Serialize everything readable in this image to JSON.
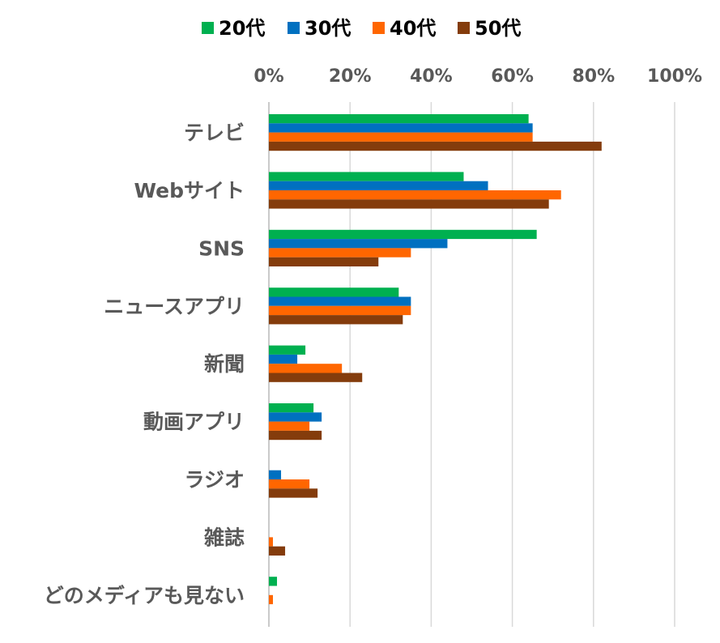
{
  "chart_data": {
    "type": "bar",
    "orientation": "horizontal",
    "categories": [
      "テレビ",
      "Webサイト",
      "SNS",
      "ニュースアプリ",
      "新聞",
      "動画アプリ",
      "ラジオ",
      "雑誌",
      "どのメディアも見ない"
    ],
    "series": [
      {
        "name": "20代",
        "color": "#00B050",
        "values": [
          64,
          48,
          66,
          32,
          9,
          11,
          0,
          0,
          2
        ]
      },
      {
        "name": "30代",
        "color": "#0070C0",
        "values": [
          65,
          54,
          44,
          35,
          7,
          13,
          3,
          0,
          0
        ]
      },
      {
        "name": "40代",
        "color": "#FF6600",
        "values": [
          65,
          72,
          35,
          35,
          18,
          10,
          10,
          1,
          1
        ]
      },
      {
        "name": "50代",
        "color": "#843C0C",
        "values": [
          82,
          69,
          27,
          33,
          23,
          13,
          12,
          4,
          0
        ]
      }
    ],
    "xlim": [
      0,
      100
    ],
    "xticks": [
      0,
      20,
      40,
      60,
      80,
      100
    ],
    "tick_suffix": "%",
    "xaxis_position": "top",
    "grid": true,
    "legend_position": "top"
  }
}
